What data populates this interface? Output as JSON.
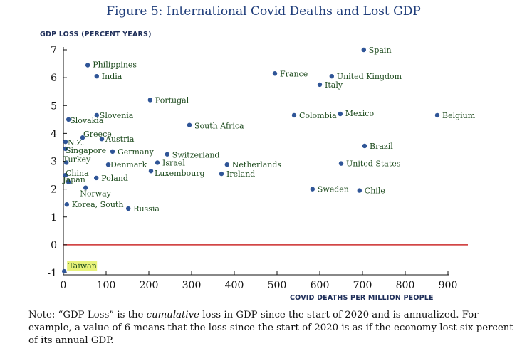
{
  "title": "Figure 5: International Covid Deaths and Lost GDP",
  "chart_data": {
    "type": "scatter",
    "title": "Figure 5: International Covid Deaths and Lost GDP",
    "xlabel": "COVID DEATHS PER MILLION PEOPLE",
    "ylabel": "GDP LOSS (PERCENT YEARS)",
    "xlim": [
      0,
      900
    ],
    "ylim": [
      -1,
      7
    ],
    "xticks": [
      0,
      100,
      200,
      300,
      400,
      500,
      600,
      700,
      800,
      900
    ],
    "yticks": [
      -1,
      0,
      1,
      2,
      3,
      4,
      5,
      6,
      7
    ],
    "reference_line": {
      "y": 0,
      "color": "#cc2b2b"
    },
    "marker_color": "#2f5597",
    "points": [
      {
        "label": "Spain",
        "x": 703,
        "y": 7.0
      },
      {
        "label": "United Kingdom",
        "x": 628,
        "y": 6.05
      },
      {
        "label": "France",
        "x": 495,
        "y": 6.15
      },
      {
        "label": "Italy",
        "x": 600,
        "y": 5.75
      },
      {
        "label": "Philippines",
        "x": 57,
        "y": 6.45
      },
      {
        "label": "India",
        "x": 78,
        "y": 6.05
      },
      {
        "label": "Portugal",
        "x": 203,
        "y": 5.2
      },
      {
        "label": "Belgium",
        "x": 875,
        "y": 4.65
      },
      {
        "label": "Mexico",
        "x": 648,
        "y": 4.7
      },
      {
        "label": "Colombia",
        "x": 540,
        "y": 4.65
      },
      {
        "label": "Slovakia",
        "x": 12,
        "y": 4.5
      },
      {
        "label": "Slovenia",
        "x": 78,
        "y": 4.65
      },
      {
        "label": "South Africa",
        "x": 295,
        "y": 4.3
      },
      {
        "label": "Greece",
        "x": 45,
        "y": 3.85
      },
      {
        "label": "Austria",
        "x": 90,
        "y": 3.8
      },
      {
        "label": "N.Z.",
        "x": 5,
        "y": 3.7
      },
      {
        "label": "Brazil",
        "x": 705,
        "y": 3.55
      },
      {
        "label": "Singapore",
        "x": 5,
        "y": 3.45
      },
      {
        "label": "Germany",
        "x": 115,
        "y": 3.35
      },
      {
        "label": "Switzerland",
        "x": 243,
        "y": 3.25
      },
      {
        "label": "Israel",
        "x": 220,
        "y": 2.95
      },
      {
        "label": "Turkey",
        "x": 7,
        "y": 2.95
      },
      {
        "label": "Denmark",
        "x": 105,
        "y": 2.88
      },
      {
        "label": "Netherlands",
        "x": 383,
        "y": 2.88
      },
      {
        "label": "United States",
        "x": 650,
        "y": 2.92
      },
      {
        "label": "Luxembourg",
        "x": 205,
        "y": 2.65
      },
      {
        "label": "Ireland",
        "x": 370,
        "y": 2.55
      },
      {
        "label": "China",
        "x": 5,
        "y": 2.5
      },
      {
        "label": "Poland",
        "x": 77,
        "y": 2.4
      },
      {
        "label": "Japan",
        "x": 12,
        "y": 2.25
      },
      {
        "label": "Norway",
        "x": 52,
        "y": 2.05
      },
      {
        "label": "Sweden",
        "x": 583,
        "y": 2.0
      },
      {
        "label": "Chile",
        "x": 693,
        "y": 1.95
      },
      {
        "label": "Korea, South",
        "x": 8,
        "y": 1.45
      },
      {
        "label": "Russia",
        "x": 152,
        "y": 1.3
      },
      {
        "label": "Taiwan",
        "x": 2,
        "y": -0.95
      }
    ]
  },
  "note": {
    "prefix": "Note: “GDP Loss” is the ",
    "emphasis": "cumulative",
    "suffix": " loss in GDP since the start of 2020 and is annualized. For example, a value of 6 means that the loss since the start of 2020 is as if the economy lost six percent of its annual GDP."
  }
}
